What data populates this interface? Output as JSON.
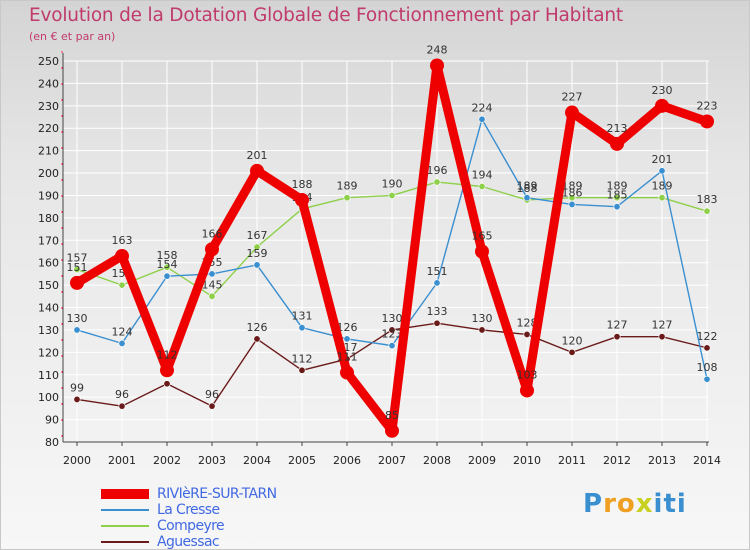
{
  "colors": {
    "title": "#c03a6c",
    "grid": "#ffffff",
    "axis": "#444444",
    "tick_text": "#222222",
    "legend_text": "#4169e1"
  },
  "logo": {
    "letters": [
      "P",
      "r",
      "o",
      "x",
      "i",
      "t",
      "i"
    ],
    "colors": [
      "#3a8fd0",
      "#f0a020",
      "#f0a020",
      "#c8d020",
      "#3a8fd0",
      "#3a8fd0",
      "#3a8fd0"
    ]
  },
  "chart_data": {
    "type": "line",
    "title": "Evolution de la Dotation Globale de Fonctionnement par Habitant",
    "subtitle": "(en € et par an)",
    "xlabel": "",
    "ylabel": "",
    "x": [
      "2000",
      "2001",
      "2002",
      "2003",
      "2004",
      "2005",
      "2006",
      "2007",
      "2008",
      "2009",
      "2010",
      "2011",
      "2012",
      "2013",
      "2014"
    ],
    "ylim": [
      80,
      250
    ],
    "yticks": [
      80,
      90,
      100,
      110,
      120,
      130,
      140,
      150,
      160,
      170,
      180,
      190,
      200,
      210,
      220,
      230,
      240,
      250
    ],
    "grid": true,
    "legend_position": "bottom-left",
    "series": [
      {
        "name": "Aguessac",
        "color": "#6b1a1a",
        "style": "thin",
        "values": [
          99,
          96,
          106,
          96,
          126,
          112,
          117,
          130,
          133,
          130,
          128,
          120,
          127,
          127,
          122
        ],
        "labels": [
          "99",
          "96",
          "",
          "96",
          "126",
          "112",
          "117",
          "130",
          "133",
          "130",
          "128",
          "120",
          "127",
          "127",
          "122"
        ]
      },
      {
        "name": "Compeyre",
        "color": "#8ed04a",
        "style": "thin",
        "values": [
          157,
          150,
          158,
          145,
          167,
          184,
          189,
          190,
          196,
          194,
          188,
          189,
          189,
          189,
          183
        ],
        "labels": [
          "157",
          "150",
          "158",
          "145",
          "167",
          "184",
          "189",
          "190",
          "196",
          "194",
          "188",
          "189",
          "189",
          "189",
          "183"
        ]
      },
      {
        "name": "La Cresse",
        "color": "#3a8fd0",
        "style": "thin",
        "values": [
          130,
          124,
          154,
          155,
          159,
          131,
          126,
          123,
          151,
          224,
          189,
          186,
          185,
          201,
          108
        ],
        "labels": [
          "130",
          "124",
          "154",
          "155",
          "159",
          "131",
          "126",
          "123",
          "151",
          "224",
          "189",
          "186",
          "185",
          "201",
          "108"
        ]
      },
      {
        "name": "RIVIèRE-SUR-TARN",
        "color": "#ee0000",
        "style": "thick",
        "values": [
          151,
          163,
          112,
          166,
          201,
          188,
          111,
          85,
          248,
          165,
          103,
          227,
          213,
          230,
          223
        ],
        "labels": [
          "151",
          "163",
          "112",
          "166",
          "201",
          "188",
          "111",
          "85",
          "248",
          "165",
          "103",
          "227",
          "213",
          "230",
          "223"
        ]
      }
    ]
  }
}
